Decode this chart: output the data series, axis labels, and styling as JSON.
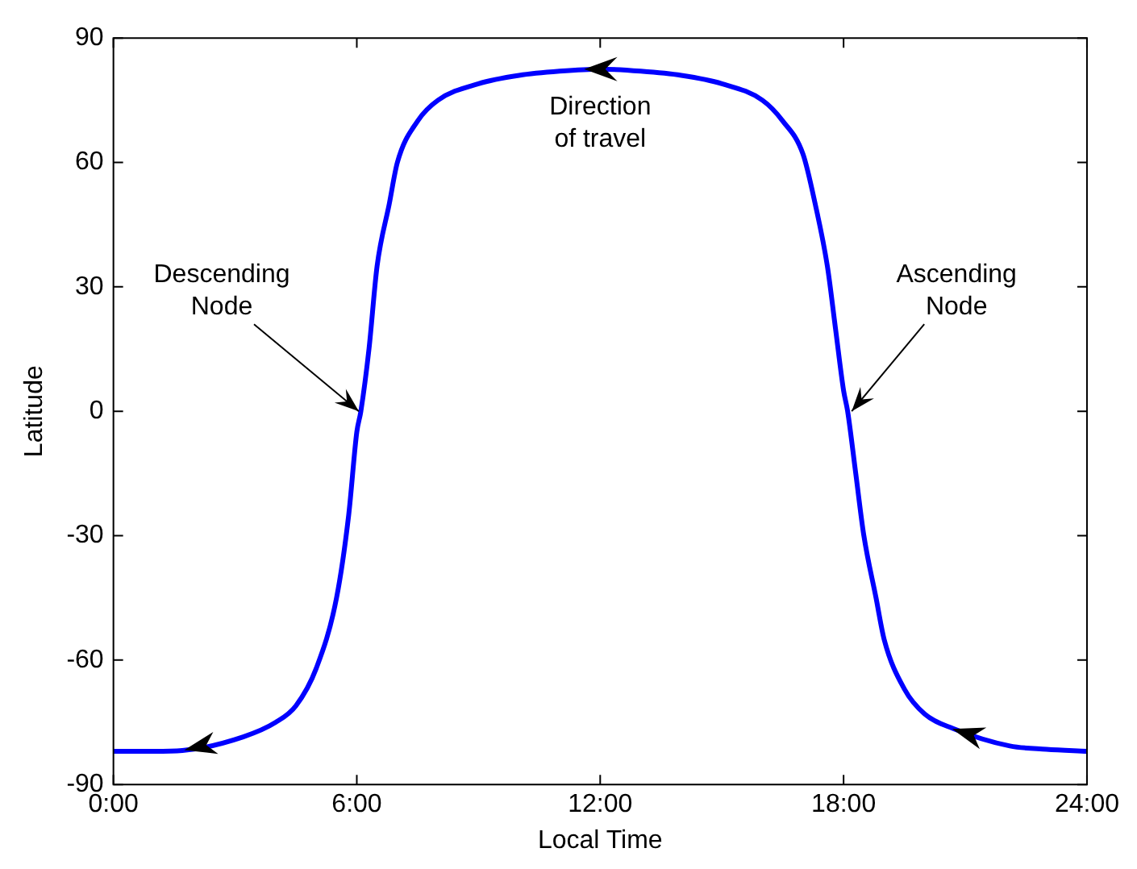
{
  "chart_data": {
    "type": "line",
    "xlabel": "Local Time",
    "ylabel": "Latitude",
    "x": [
      0,
      1,
      1.7,
      3.2,
      4,
      4.5,
      5,
      5.5,
      5.8,
      6,
      6.1,
      6.3,
      6.5,
      6.8,
      7,
      7.5,
      8,
      9,
      10,
      11,
      12,
      13,
      14,
      15,
      16,
      16.5,
      17,
      17.3,
      17.6,
      17.8,
      18,
      18.1,
      18.3,
      18.5,
      18.8,
      19,
      19.5,
      20,
      20.7,
      22.1,
      23,
      24
    ],
    "series": [
      {
        "color": "#0000ff",
        "values": [
          -82,
          -82,
          -81.8,
          -78.5,
          -75,
          -71,
          -62,
          -45,
          -25,
          -5,
          0,
          15,
          35,
          50,
          60,
          70,
          75,
          79,
          81,
          82,
          82.5,
          82,
          81,
          79,
          75,
          70,
          62,
          50,
          35,
          20,
          5,
          0,
          -15,
          -30,
          -45,
          -55,
          -67,
          -73,
          -76.5,
          -80.7,
          -81.5,
          -82
        ]
      }
    ],
    "xlim": [
      0,
      24
    ],
    "xticks": [
      {
        "value": 0,
        "label": "0:00"
      },
      {
        "value": 6,
        "label": "6:00"
      },
      {
        "value": 12,
        "label": "12:00"
      },
      {
        "value": 18,
        "label": "18:00"
      },
      {
        "value": 24,
        "label": "24:00"
      }
    ],
    "ylim": [
      -90,
      90
    ],
    "yticks": [
      -90,
      -60,
      -30,
      0,
      30,
      60,
      90
    ],
    "annotations": [
      {
        "text": "Descending Node",
        "x": 6.05,
        "y": 0
      },
      {
        "text": "Ascending Node",
        "x": 18.2,
        "y": 0
      },
      {
        "text": "Direction of travel",
        "x": 12,
        "y": 82.5
      }
    ],
    "grid": false,
    "legend": false,
    "marker": "none",
    "line_style": "solid"
  }
}
